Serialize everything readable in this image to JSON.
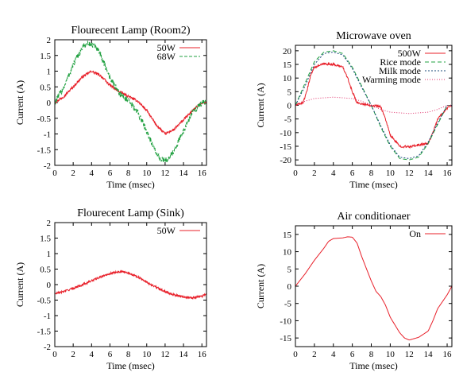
{
  "chart_data": [
    {
      "type": "line",
      "title": "Flourecent Lamp (Room2)",
      "xlabel": "Time (msec)",
      "ylabel": "Current (A)",
      "xlim": [
        0,
        16.5
      ],
      "ylim": [
        -2,
        2
      ],
      "xticks": [
        0,
        2,
        4,
        6,
        8,
        10,
        12,
        14,
        16
      ],
      "yticks": [
        -2,
        -1.5,
        -1,
        -0.5,
        0,
        0.5,
        1,
        1.5,
        2
      ],
      "legend": "top-right",
      "series": [
        {
          "name": "50W",
          "color": "#e8202a",
          "dash": "",
          "noise": 0.04,
          "x": [
            0,
            1,
            2,
            3,
            4,
            5,
            6,
            7,
            8,
            9,
            10,
            11,
            12,
            13,
            14,
            15,
            16,
            16.5
          ],
          "y": [
            0,
            0.2,
            0.5,
            0.82,
            1.0,
            0.85,
            0.55,
            0.35,
            0.2,
            0.05,
            -0.25,
            -0.7,
            -1.0,
            -0.85,
            -0.55,
            -0.25,
            0.0,
            0.0
          ]
        },
        {
          "name": "68W",
          "color": "#20a040",
          "dash": "4,2",
          "noise": 0.1,
          "x": [
            0,
            1,
            2,
            3,
            3.5,
            4,
            4.5,
            5,
            6,
            7,
            8,
            9,
            10,
            11,
            11.5,
            12,
            12.5,
            13,
            14,
            15,
            16,
            16.5
          ],
          "y": [
            0,
            0.5,
            1.2,
            1.75,
            1.88,
            1.85,
            1.75,
            1.5,
            0.8,
            0.3,
            0.05,
            -0.3,
            -0.9,
            -1.6,
            -1.8,
            -1.85,
            -1.75,
            -1.5,
            -0.9,
            -0.3,
            0.0,
            0.0
          ]
        }
      ]
    },
    {
      "type": "line",
      "title": "Microwave oven",
      "xlabel": "Time (msec)",
      "ylabel": "Current (A)",
      "xlim": [
        0,
        16.5
      ],
      "ylim": [
        -22,
        22
      ],
      "xticks": [
        0,
        2,
        4,
        6,
        8,
        10,
        12,
        14,
        16
      ],
      "yticks": [
        -20,
        -15,
        -10,
        -5,
        0,
        5,
        10,
        15,
        20
      ],
      "legend": "top-right",
      "series": [
        {
          "name": "500W",
          "color": "#e8202a",
          "dash": "",
          "noise": 0.4,
          "x": [
            0,
            0.8,
            1.2,
            1.6,
            2,
            3,
            4,
            5,
            5.5,
            6,
            6.5,
            7,
            8,
            9,
            9.5,
            10,
            11,
            12,
            13,
            14,
            14.5,
            15,
            16,
            16.5
          ],
          "y": [
            0,
            1,
            5,
            11,
            14,
            15.2,
            15,
            14,
            10,
            5,
            1,
            0.5,
            0,
            -0.5,
            -5,
            -11,
            -15,
            -15.2,
            -14.5,
            -14,
            -10,
            -5,
            -1,
            0
          ]
        },
        {
          "name": "Rice mode",
          "color": "#20a040",
          "dash": "5,3",
          "noise": 0,
          "x": [
            0,
            1,
            2,
            3,
            4,
            5,
            6,
            7,
            8,
            9,
            10,
            11,
            12,
            13,
            14,
            15,
            16,
            16.5
          ],
          "y": [
            0,
            8,
            16,
            19.5,
            20,
            19,
            14,
            7,
            0,
            -8,
            -15,
            -19.5,
            -20,
            -19,
            -14,
            -7,
            0,
            0
          ]
        },
        {
          "name": "Milk mode",
          "color": "#1a4a7a",
          "dash": "2,2",
          "noise": 0,
          "x": [
            0,
            1,
            2,
            3,
            4,
            5,
            6,
            7,
            8,
            9,
            10,
            11,
            12,
            13,
            14,
            15,
            16,
            16.5
          ],
          "y": [
            0,
            7,
            15,
            19,
            19.5,
            18.5,
            13.5,
            6.5,
            0,
            -7.5,
            -14.5,
            -19,
            -19.5,
            -18.5,
            -13.5,
            -6.5,
            0,
            0
          ]
        },
        {
          "name": "Warming mode",
          "color": "#e0306a",
          "dash": "1,2",
          "noise": 0,
          "x": [
            0,
            1,
            2,
            4,
            6,
            7,
            8,
            9,
            10,
            12,
            14,
            15,
            16,
            16.5
          ],
          "y": [
            0,
            1.5,
            2.5,
            3,
            2.5,
            1.5,
            0,
            -1.5,
            -2.5,
            -3,
            -2.5,
            -1.5,
            0,
            0
          ]
        }
      ]
    },
    {
      "type": "line",
      "title": "Flourecent Lamp (Sink)",
      "xlabel": "Time (msec)",
      "ylabel": "Current (A)",
      "xlim": [
        0,
        16.5
      ],
      "ylim": [
        -2,
        2
      ],
      "xticks": [
        0,
        2,
        4,
        6,
        8,
        10,
        12,
        14,
        16
      ],
      "yticks": [
        -2,
        -1.5,
        -1,
        -0.5,
        0,
        0.5,
        1,
        1.5,
        2
      ],
      "legend": "top-right",
      "series": [
        {
          "name": "50W",
          "color": "#e8202a",
          "dash": "",
          "noise": 0.035,
          "x": [
            0,
            1,
            2,
            3,
            4,
            5,
            6,
            7,
            8,
            9,
            10,
            11,
            12,
            13,
            14,
            15,
            16,
            16.5
          ],
          "y": [
            -0.3,
            -0.22,
            -0.12,
            0.0,
            0.12,
            0.25,
            0.36,
            0.42,
            0.38,
            0.25,
            0.08,
            -0.08,
            -0.22,
            -0.33,
            -0.4,
            -0.42,
            -0.38,
            -0.3
          ]
        }
      ]
    },
    {
      "type": "line",
      "title": "Air conditionaer",
      "xlabel": "Time (msec)",
      "ylabel": "Current (A)",
      "xlim": [
        0,
        16.5
      ],
      "ylim": [
        -17.5,
        17.5
      ],
      "xticks": [
        0,
        2,
        4,
        6,
        8,
        10,
        12,
        14,
        16
      ],
      "yticks": [
        -15,
        -10,
        -5,
        0,
        5,
        10,
        15
      ],
      "legend": "top-right",
      "series": [
        {
          "name": "On",
          "color": "#e8202a",
          "dash": "",
          "noise": 0,
          "x": [
            0,
            1,
            2,
            3,
            3.5,
            4,
            5,
            5.5,
            6,
            6.5,
            7,
            8,
            8.5,
            9,
            9.5,
            10,
            11,
            11.5,
            12,
            12.5,
            13,
            14,
            14.5,
            15,
            16,
            16.5
          ],
          "y": [
            0,
            3.5,
            7.5,
            11,
            13,
            13.8,
            14,
            14.3,
            14.2,
            12.5,
            8.5,
            1.5,
            -1.5,
            -3,
            -5.5,
            -9,
            -13.5,
            -15,
            -15.6,
            -15.2,
            -14.8,
            -13,
            -10,
            -6.5,
            -2.5,
            0
          ]
        }
      ]
    }
  ]
}
